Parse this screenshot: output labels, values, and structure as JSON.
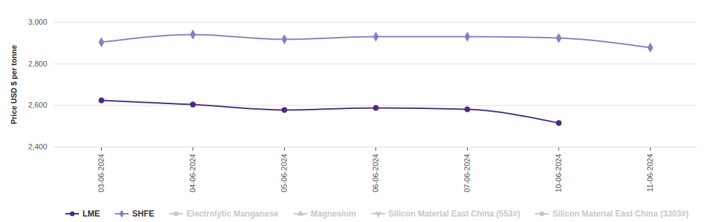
{
  "chart_data": {
    "type": "line",
    "y_label": "Price USD $ per tonne",
    "x": [
      "03-06-2024",
      "04-06-2024",
      "05-06-2024",
      "06-06-2024",
      "07-06-2024",
      "10-06-2024",
      "11-06-2024"
    ],
    "series": [
      {
        "name": "LME",
        "color": "#4b2c7f",
        "marker": "circle",
        "values": [
          2624,
          2604,
          2578,
          2588,
          2581,
          2515,
          null
        ]
      },
      {
        "name": "SHFE",
        "color": "#8f7bc1",
        "marker": "diamond",
        "values": [
          2904,
          2941,
          2918,
          2931,
          2931,
          2924,
          2878
        ]
      },
      {
        "name": "Electrolytic Manganese",
        "color": "#c8c8c8",
        "marker": "square",
        "values": [
          null,
          null,
          null,
          null,
          null,
          null,
          null
        ]
      },
      {
        "name": "Magnesium",
        "color": "#c8c8c8",
        "marker": "triangle",
        "values": [
          null,
          null,
          null,
          null,
          null,
          null,
          null
        ]
      },
      {
        "name": "Silicon Material East China (553#)",
        "color": "#c8c8c8",
        "marker": "triangle-down",
        "values": [
          null,
          null,
          null,
          null,
          null,
          null,
          null
        ]
      },
      {
        "name": "Silicon Material East China (3303#)",
        "color": "#c8c8c8",
        "marker": "circle",
        "values": [
          null,
          null,
          null,
          null,
          null,
          null,
          null
        ]
      }
    ],
    "ylim": [
      2400,
      3000
    ],
    "yticks": [
      2400,
      2600,
      2800,
      3000
    ],
    "grid": true,
    "legend": "bottom"
  }
}
